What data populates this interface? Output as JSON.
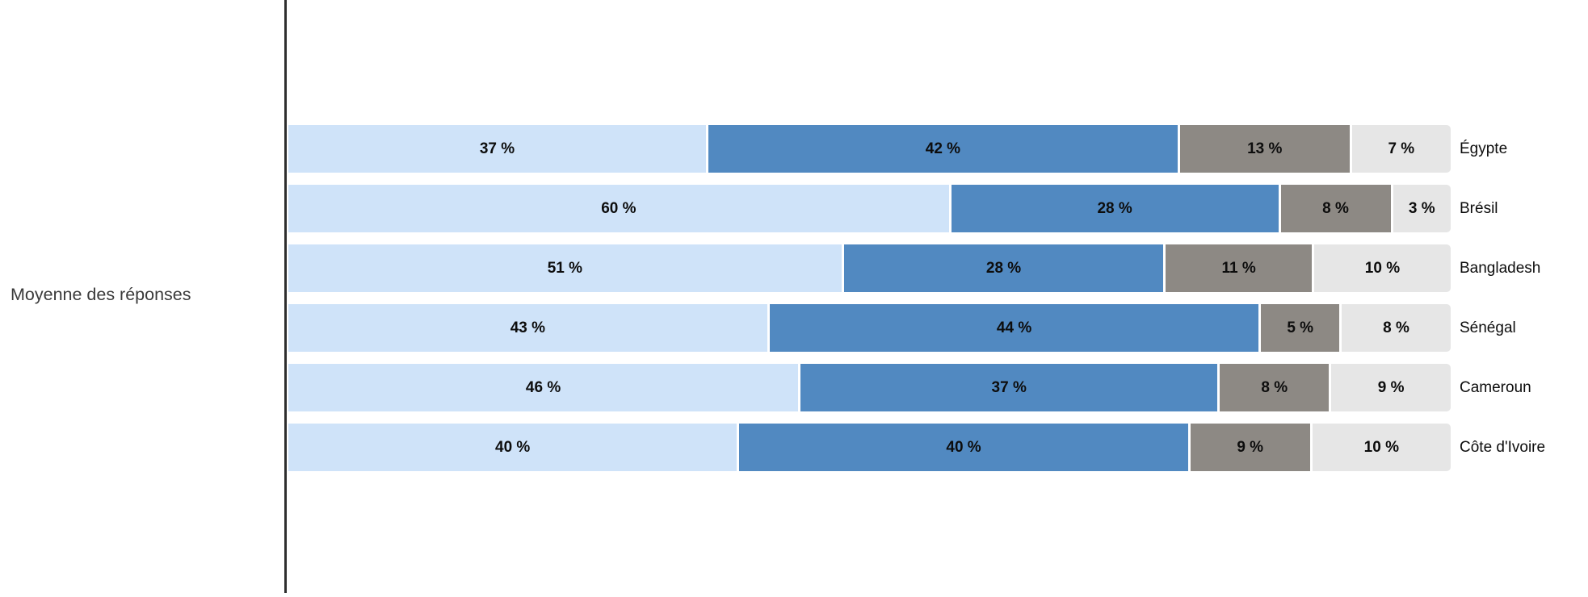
{
  "chart_data": {
    "type": "bar",
    "orientation": "horizontal",
    "stacked": true,
    "axis_label": "Moyenne des réponses",
    "value_suffix": " %",
    "categories": [
      "Égypte",
      "Brésil",
      "Bangladesh",
      "Sénégal",
      "Cameroun",
      "Côte d'Ivoire"
    ],
    "series": [
      {
        "name": "light-blue",
        "color": "#cfe3f9",
        "values": [
          37,
          60,
          51,
          43,
          46,
          40
        ]
      },
      {
        "name": "medium-blue",
        "color": "#5189c1",
        "values": [
          42,
          28,
          28,
          44,
          37,
          40
        ]
      },
      {
        "name": "dark-gray",
        "color": "#8d8984",
        "values": [
          13,
          8,
          11,
          5,
          8,
          9
        ]
      },
      {
        "name": "light-gray",
        "color": "#e6e6e6",
        "values": [
          7,
          3,
          10,
          8,
          9,
          10
        ]
      }
    ],
    "layout": {
      "legend": false,
      "grid": false,
      "bars_right_aligned_to_full_width": true,
      "value_labels_inside_segments": true,
      "category_labels_right_of_bars": true
    }
  },
  "colors": {
    "background": "#ffffff",
    "axis_line": "#2e2e2e",
    "axis_label_text": "#3a3a3a",
    "value_label_text": "#0d0d0d",
    "category_label_text": "#0d0d0d"
  }
}
